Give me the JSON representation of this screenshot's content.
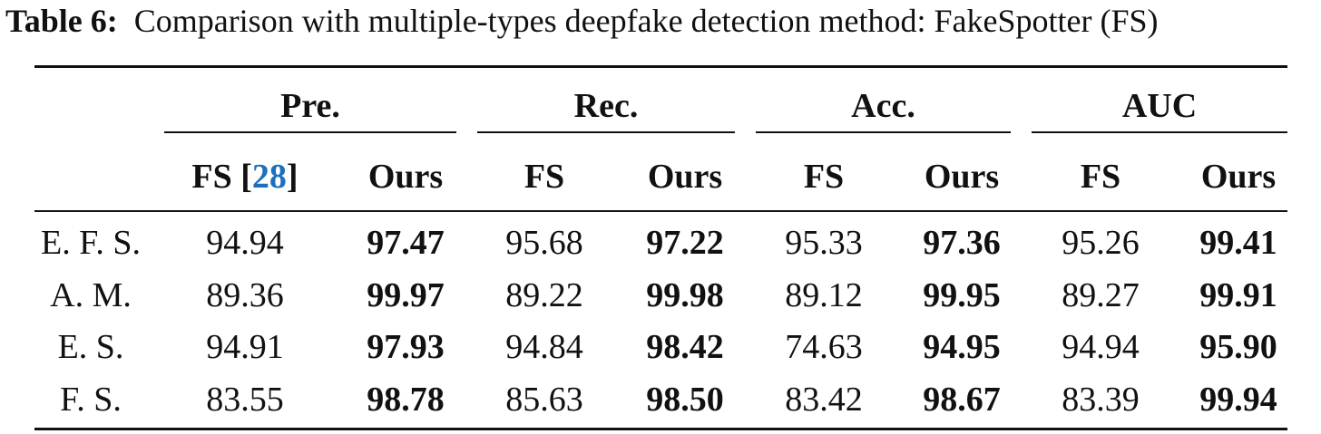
{
  "caption": {
    "label": "Table 6:",
    "text": "Comparison with multiple-types deepfake detection method: FakeSpotter (FS)"
  },
  "table": {
    "groups": [
      "Pre.",
      "Rec.",
      "Acc.",
      "AUC"
    ],
    "first_subheader": {
      "prefix": "FS [",
      "ref": "28",
      "suffix": "]"
    },
    "subheaders": [
      "Ours",
      "FS",
      "Ours",
      "FS",
      "Ours",
      "FS",
      "Ours"
    ],
    "rows": [
      [
        "E. F. S.",
        "94.94",
        "97.47",
        "95.68",
        "97.22",
        "95.33",
        "97.36",
        "95.26",
        "99.41"
      ],
      [
        "A. M.",
        "89.36",
        "99.97",
        "89.22",
        "99.98",
        "89.12",
        "99.95",
        "89.27",
        "99.91"
      ],
      [
        "E. S.",
        "94.91",
        "97.93",
        "94.84",
        "98.42",
        "74.63",
        "94.95",
        "94.94",
        "95.90"
      ],
      [
        "F. S.",
        "83.55",
        "98.78",
        "85.63",
        "98.50",
        "83.42",
        "98.67",
        "83.39",
        "99.94"
      ]
    ]
  }
}
